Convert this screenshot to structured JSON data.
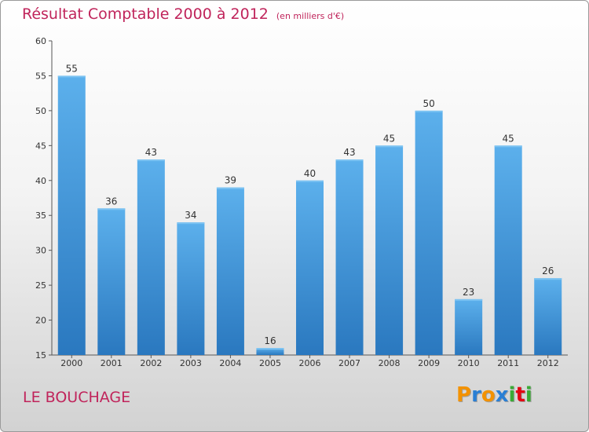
{
  "chart_data": {
    "type": "bar",
    "title": "Résultat Comptable 2000 à 2012",
    "unit": "(en milliers d'€)",
    "categories": [
      "2000",
      "2001",
      "2002",
      "2003",
      "2004",
      "2005",
      "2006",
      "2007",
      "2008",
      "2009",
      "2010",
      "2011",
      "2012"
    ],
    "values": [
      55,
      36,
      43,
      34,
      39,
      16,
      40,
      43,
      45,
      50,
      23,
      45,
      26
    ],
    "ylim": [
      15,
      60
    ],
    "yticks": [
      15,
      20,
      25,
      30,
      35,
      40,
      45,
      50,
      55,
      60
    ],
    "xlabel": "",
    "ylabel": "",
    "grid": false,
    "bar_color": "#4a9ee0"
  },
  "location": "LE BOUCHAGE",
  "brand": {
    "letters": [
      "P",
      "r",
      "o",
      "x",
      "i",
      "t",
      "i"
    ],
    "colors": [
      "#f39200",
      "#2a7fd4",
      "#f39200",
      "#2a7fd4",
      "#3aaa35",
      "#e30613",
      "#3aaa35"
    ]
  }
}
